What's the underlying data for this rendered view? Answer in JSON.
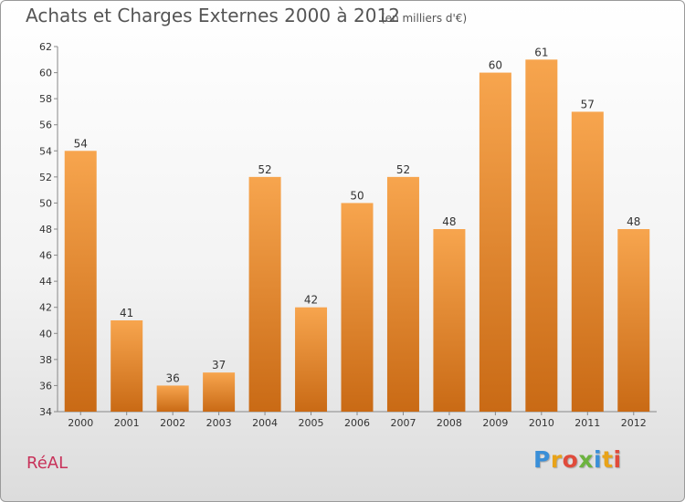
{
  "header": {
    "title": "Achats et Charges Externes 2000 à 2012",
    "unit": "(en milliers d'€)"
  },
  "footer": {
    "commune": "RéAL",
    "logo_letters": [
      "P",
      "r",
      "o",
      "x",
      "i",
      "t",
      "i"
    ],
    "logo_colors": [
      "#3a8fd8",
      "#e8a319",
      "#e04b3b",
      "#6cb33f",
      "#3a8fd8",
      "#e8a319",
      "#e04b3b"
    ]
  },
  "chart_data": {
    "type": "bar",
    "title": "Achats et Charges Externes 2000 à 2012",
    "categories": [
      "2000",
      "2001",
      "2002",
      "2003",
      "2004",
      "2005",
      "2006",
      "2007",
      "2008",
      "2009",
      "2010",
      "2011",
      "2012"
    ],
    "values": [
      54,
      41,
      36,
      37,
      52,
      42,
      50,
      52,
      48,
      60,
      61,
      57,
      48
    ],
    "xlabel": "",
    "ylabel": "",
    "ylim": [
      34,
      62
    ],
    "yticks": [
      34,
      36,
      38,
      40,
      42,
      44,
      46,
      48,
      50,
      52,
      54,
      56,
      58,
      60,
      62
    ],
    "grid": false,
    "bar_color_top": "#f7a54e",
    "bar_color_bottom": "#c96a15"
  }
}
